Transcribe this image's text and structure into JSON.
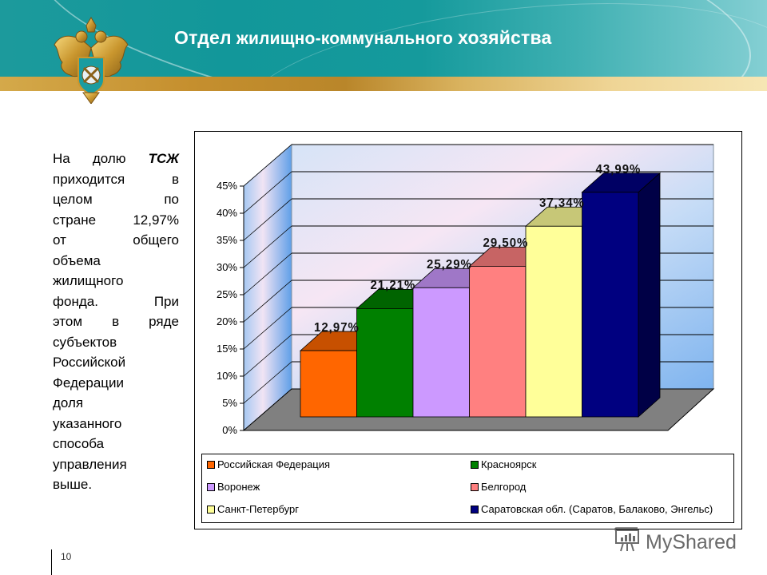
{
  "header": {
    "title_part1": "Отдел",
    "title_part2": " жилищно-коммунального ",
    "title_part3": "хозяйства",
    "emblem": "russian-double-headed-eagle-emblem"
  },
  "body_text": {
    "lines": [
      [
        "На",
        "долю",
        "ТСЖ"
      ],
      [
        "приходится",
        "в"
      ],
      [
        "целом",
        "по"
      ],
      [
        "стране",
        "12,97%"
      ],
      [
        "от",
        "общего"
      ],
      [
        "объема"
      ],
      [
        "жилищного"
      ],
      [
        "фонда.",
        "При"
      ],
      [
        "этом",
        "в",
        "ряде"
      ],
      [
        "субъектов"
      ],
      [
        "Российской"
      ],
      [
        "Федерации"
      ],
      [
        "доля"
      ],
      [
        "указанного"
      ],
      [
        "способа"
      ],
      [
        "управления"
      ],
      [
        "выше."
      ]
    ],
    "full": "На долю ТСЖ приходится в целом по стране 12,97% от общего объема жилищного фонда. При этом в ряде субъектов Российской Федерации доля указанного способа управления выше."
  },
  "footer": {
    "page_number": "10",
    "watermark": "MyShared"
  },
  "chart_data": {
    "type": "bar",
    "style": "3d-column",
    "title": "",
    "xlabel": "",
    "ylabel": "",
    "ylim": [
      0,
      45
    ],
    "yticks": [
      "0%",
      "5%",
      "10%",
      "15%",
      "20%",
      "25%",
      "30%",
      "35%",
      "40%",
      "45%"
    ],
    "grid": true,
    "legend_position": "bottom",
    "categories": [
      "Российская Федерация",
      "Красноярск",
      "Воронеж",
      "Белгород",
      "Санкт-Петербург",
      "Саратовская обл. (Саратов, Балаково, Энгельс)"
    ],
    "values": [
      12.97,
      21.21,
      25.29,
      29.5,
      37.34,
      43.99
    ],
    "data_labels": [
      "12,97%",
      "21,21%",
      "25,29%",
      "29,50%",
      "37,34%",
      "43,99%"
    ],
    "colors": [
      "#ff6600",
      "#008000",
      "#cc99ff",
      "#ff8080",
      "#ffff99",
      "#000080"
    ],
    "legend": [
      {
        "label": "Российская Федерация",
        "color": "#ff6600"
      },
      {
        "label": "Красноярск",
        "color": "#008000"
      },
      {
        "label": "Воронеж",
        "color": "#cc99ff"
      },
      {
        "label": "Белгород",
        "color": "#ff8080"
      },
      {
        "label": "Санкт-Петербург",
        "color": "#ffff99"
      },
      {
        "label": "Саратовская обл. (Саратов, Балаково, Энгельс)",
        "color": "#000080"
      }
    ]
  }
}
